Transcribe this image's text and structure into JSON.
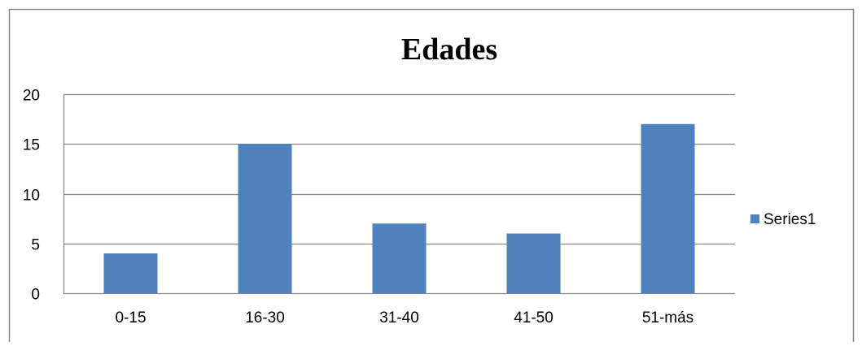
{
  "chart_data": {
    "type": "bar",
    "title": "Edades",
    "categories": [
      "0-15",
      "16-30",
      "31-40",
      "41-50",
      "51-más"
    ],
    "series": [
      {
        "name": "Series1",
        "values": [
          4,
          15,
          7,
          6,
          17
        ],
        "color": "#4f81bd"
      }
    ],
    "ylim": [
      0,
      20
    ],
    "yticks": [
      0,
      5,
      10,
      15,
      20
    ],
    "grid": true,
    "legend": "right",
    "colors": {
      "gridline": "#868686",
      "frame": "#868686",
      "text": "#000000"
    }
  }
}
